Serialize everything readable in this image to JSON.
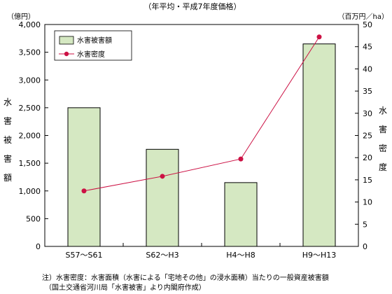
{
  "chart_data": {
    "type": "bar",
    "subtitle": "（年平均・平成7年度価格）",
    "categories": [
      "S57～S61",
      "S62～H3",
      "H4～H8",
      "H9～H13"
    ],
    "series": [
      {
        "name": "水害被害額",
        "type": "bar",
        "axis": "left",
        "values": [
          2500,
          1750,
          1150,
          3650
        ]
      },
      {
        "name": "水害密度",
        "type": "line",
        "axis": "right",
        "values": [
          12.5,
          15.8,
          19.7,
          47.2
        ]
      }
    ],
    "y_left": {
      "unit": "（億円）",
      "label": "水害被害額",
      "range": [
        0,
        4000
      ],
      "ticks": [
        0,
        500,
        1000,
        1500,
        2000,
        2500,
        3000,
        3500,
        4000
      ]
    },
    "y_right": {
      "unit": "（百万円／ha）",
      "label": "水害密度",
      "range": [
        0,
        50
      ],
      "ticks": [
        0,
        5,
        10,
        15,
        20,
        25,
        30,
        35,
        40,
        45,
        50
      ]
    },
    "legend_position": "top-left",
    "colors": {
      "bar_fill": "#d5e8c2",
      "bar_stroke": "#000000",
      "line": "#cc1144"
    },
    "notes": [
      "注）水害密度：水害面積（水害による「宅地その他」の浸水面積）当たりの一般資産被害額",
      "（国土交通省河川局「水害被害」より内閣府作成）"
    ]
  }
}
